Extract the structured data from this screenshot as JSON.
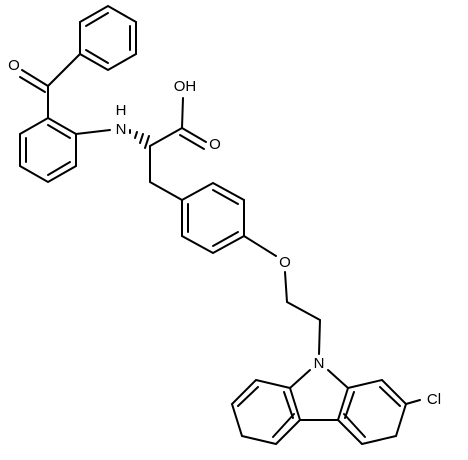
{
  "atoms": [
    "O",
    "H",
    "N",
    "OH",
    "O",
    "O",
    "N",
    "Cl"
  ]
}
